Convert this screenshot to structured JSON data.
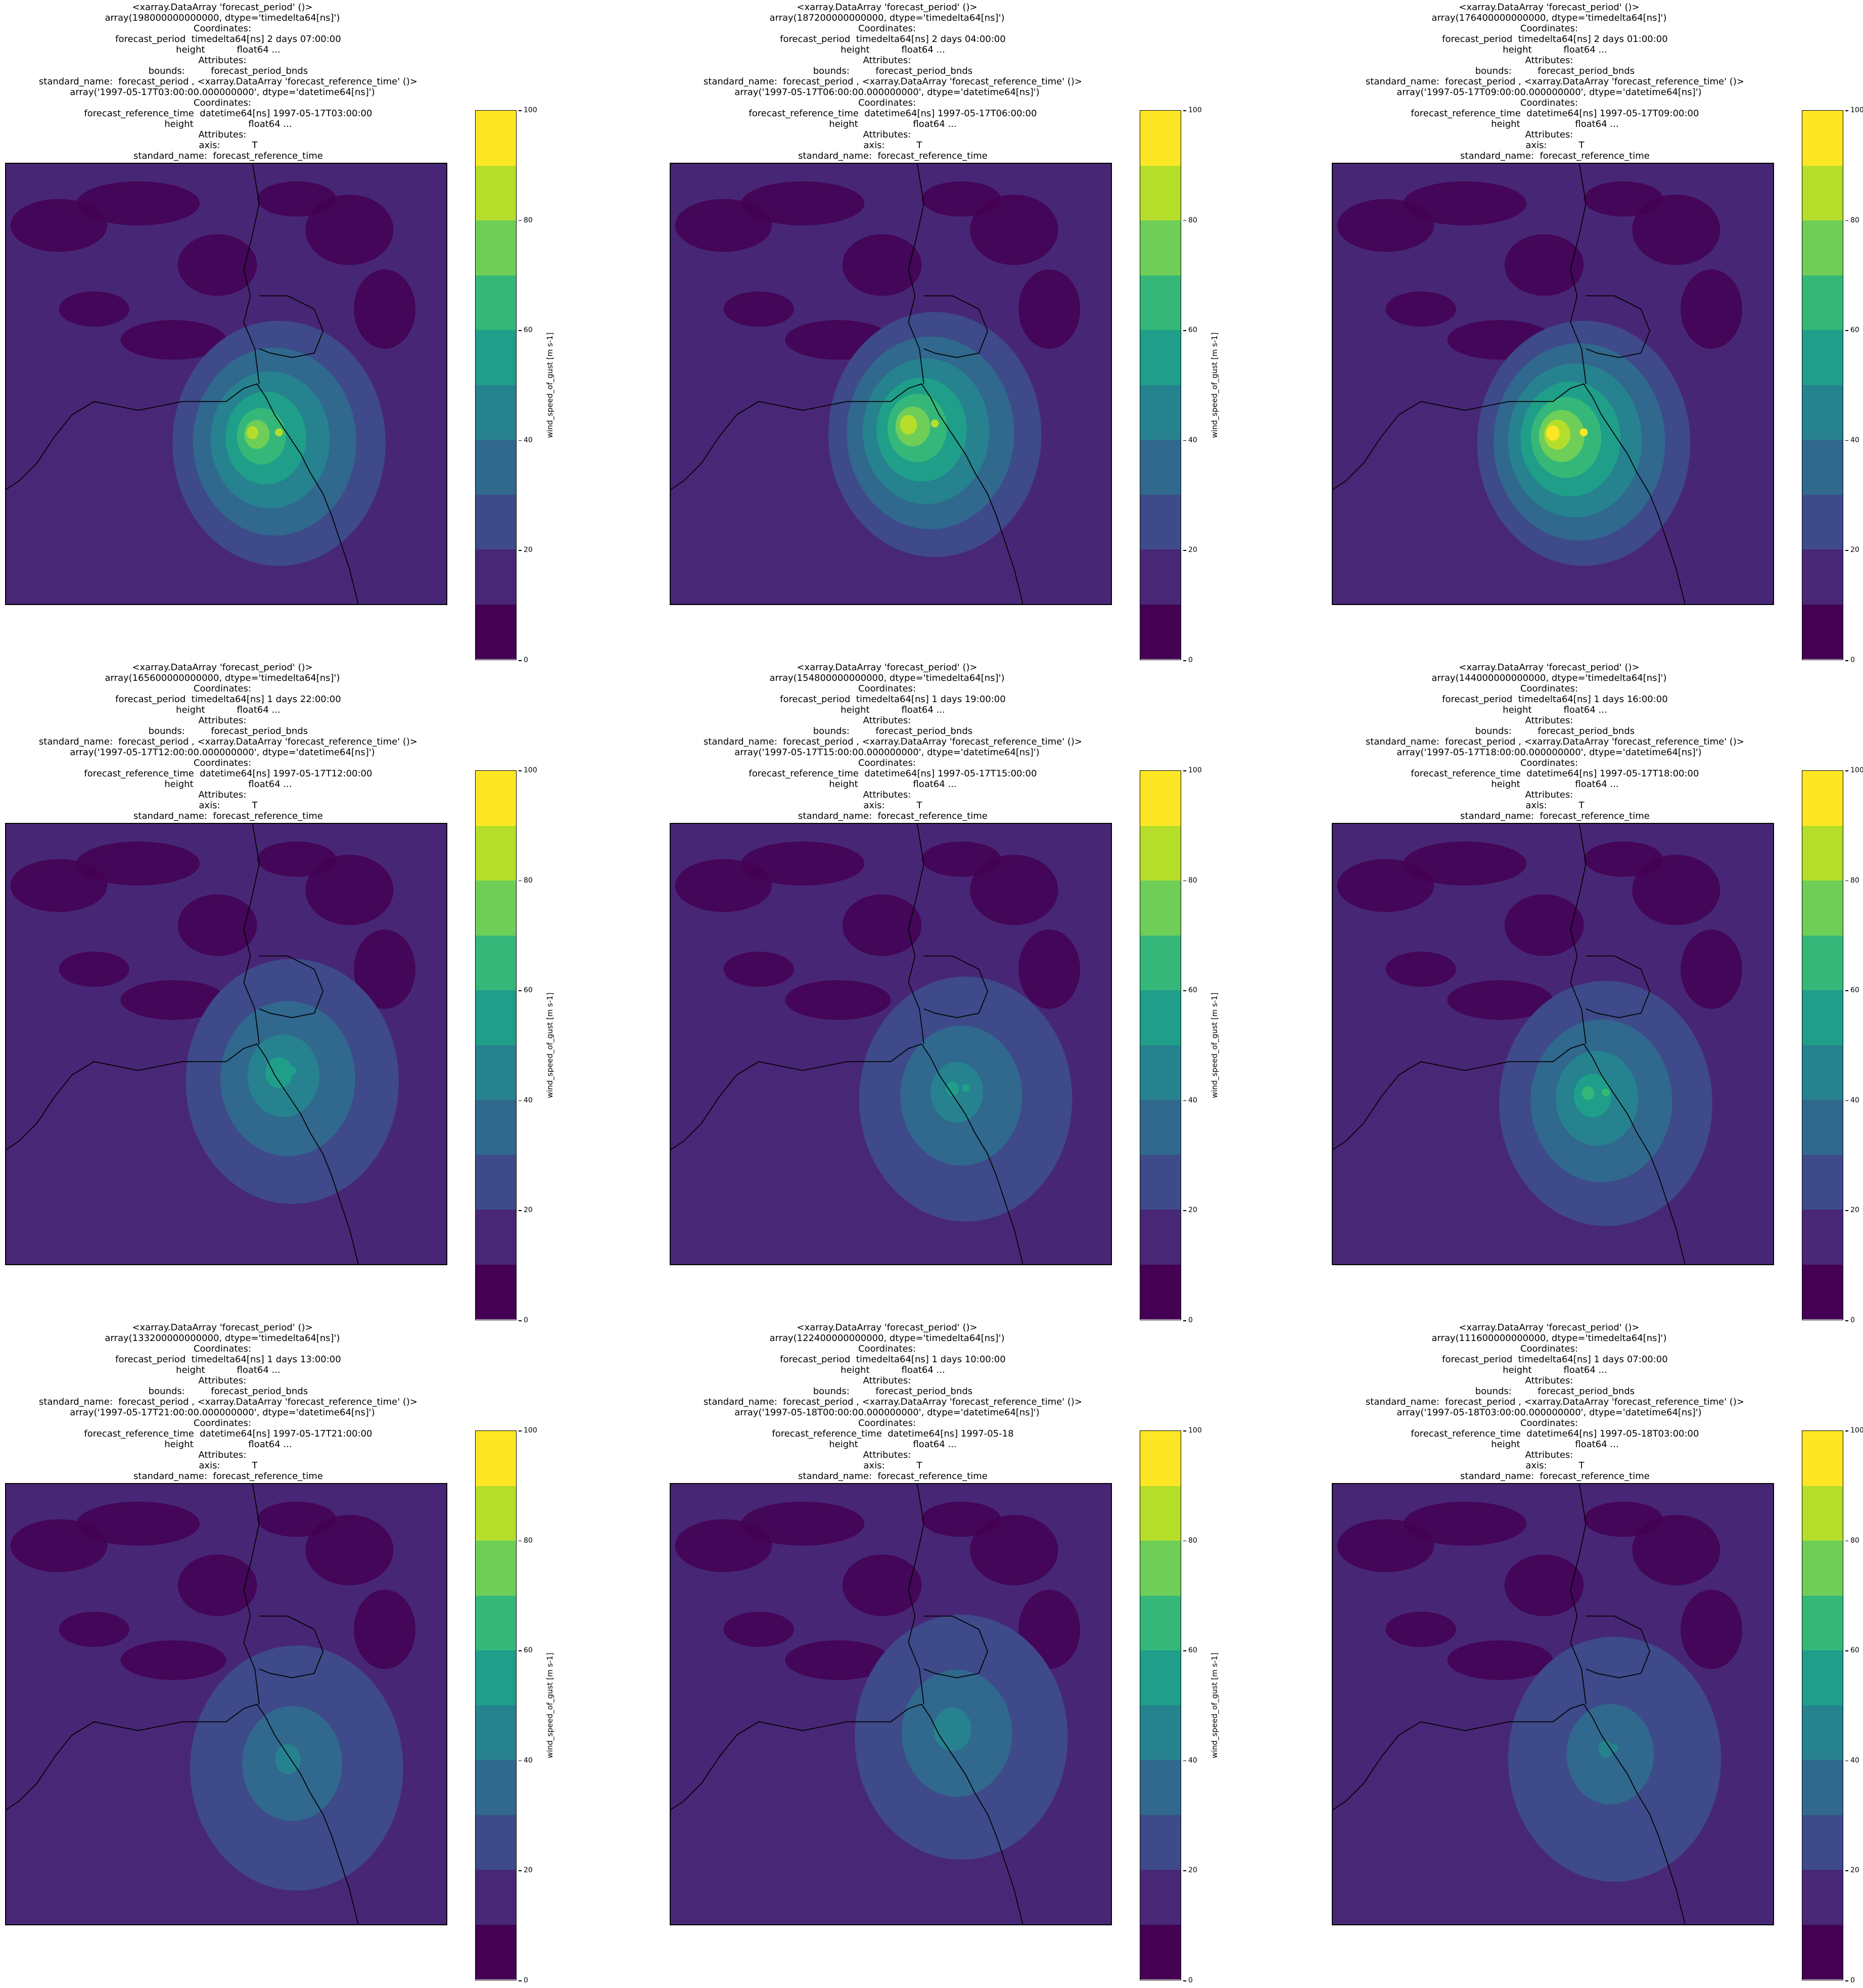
{
  "chart_data": {
    "type": "heatmap",
    "colorbar": {
      "label": "wind_speed_of_gust [m s-1]",
      "levels": [
        0,
        10,
        20,
        30,
        40,
        50,
        60,
        70,
        80,
        90,
        100
      ],
      "tick_labels": [
        "0",
        "20",
        "40",
        "60",
        "80",
        "100"
      ],
      "colors": [
        "#440154",
        "#482777",
        "#3e4a89",
        "#31688e",
        "#26828e",
        "#1f9e89",
        "#35b779",
        "#6ece58",
        "#b5de2b",
        "#fde725"
      ]
    },
    "panels": [
      {
        "title_lines": [
          "<xarray.DataArray 'forecast_period' ()>",
          "array(198000000000000, dtype='timedelta64[ns]')",
          "Coordinates:",
          "    forecast_period  timedelta64[ns] 2 days 07:00:00",
          "    height           float64 ...",
          "Attributes:",
          "    bounds:         forecast_period_bnds",
          "    standard_name:  forecast_period , <xarray.DataArray 'forecast_reference_time' ()>",
          "array('1997-05-17T03:00:00.000000000', dtype='datetime64[ns]')",
          "Coordinates:",
          "    forecast_reference_time  datetime64[ns] 1997-05-17T03:00:00",
          "    height                   float64 ...",
          "Attributes:",
          "    axis:           T",
          "    standard_name:  forecast_reference_time"
        ],
        "storm": {
          "x": 0.62,
          "y": 0.61,
          "peak": 82
        }
      },
      {
        "title_lines": [
          "<xarray.DataArray 'forecast_period' ()>",
          "array(187200000000000, dtype='timedelta64[ns]')",
          "Coordinates:",
          "    forecast_period  timedelta64[ns] 2 days 04:00:00",
          "    height           float64 ...",
          "Attributes:",
          "    bounds:         forecast_period_bnds",
          "    standard_name:  forecast_period , <xarray.DataArray 'forecast_reference_time' ()>",
          "array('1997-05-17T06:00:00.000000000', dtype='datetime64[ns]')",
          "Coordinates:",
          "    forecast_reference_time  datetime64[ns] 1997-05-17T06:00:00",
          "    height                   float64 ...",
          "Attributes:",
          "    axis:           T",
          "    standard_name:  forecast_reference_time"
        ],
        "storm": {
          "x": 0.6,
          "y": 0.59,
          "peak": 88
        }
      },
      {
        "title_lines": [
          "<xarray.DataArray 'forecast_period' ()>",
          "array(176400000000000, dtype='timedelta64[ns]')",
          "Coordinates:",
          "    forecast_period  timedelta64[ns] 2 days 01:00:00",
          "    height           float64 ...",
          "Attributes:",
          "    bounds:         forecast_period_bnds",
          "    standard_name:  forecast_period , <xarray.DataArray 'forecast_reference_time' ()>",
          "array('1997-05-17T09:00:00.000000000', dtype='datetime64[ns]')",
          "Coordinates:",
          "    forecast_reference_time  datetime64[ns] 1997-05-17T09:00:00",
          "    height                   float64 ...",
          "Attributes:",
          "    axis:           T",
          "    standard_name:  forecast_reference_time"
        ],
        "storm": {
          "x": 0.57,
          "y": 0.61,
          "peak": 95
        }
      },
      {
        "title_lines": [
          "<xarray.DataArray 'forecast_period' ()>",
          "array(165600000000000, dtype='timedelta64[ns]')",
          "Coordinates:",
          "    forecast_period  timedelta64[ns] 1 days 22:00:00",
          "    height           float64 ...",
          "Attributes:",
          "    bounds:         forecast_period_bnds",
          "    standard_name:  forecast_period , <xarray.DataArray 'forecast_reference_time' ()>",
          "array('1997-05-17T12:00:00.000000000', dtype='datetime64[ns]')",
          "Coordinates:",
          "    forecast_reference_time  datetime64[ns] 1997-05-17T12:00:00",
          "    height                   float64 ...",
          "Attributes:",
          "    axis:           T",
          "    standard_name:  forecast_reference_time"
        ],
        "storm": {
          "x": 0.65,
          "y": 0.56,
          "peak": 58
        }
      },
      {
        "title_lines": [
          "<xarray.DataArray 'forecast_period' ()>",
          "array(154800000000000, dtype='timedelta64[ns]')",
          "Coordinates:",
          "    forecast_period  timedelta64[ns] 1 days 19:00:00",
          "    height           float64 ...",
          "Attributes:",
          "    bounds:         forecast_period_bnds",
          "    standard_name:  forecast_period , <xarray.DataArray 'forecast_reference_time' ()>",
          "array('1997-05-17T15:00:00.000000000', dtype='datetime64[ns]')",
          "Coordinates:",
          "    forecast_reference_time  datetime64[ns] 1997-05-17T15:00:00",
          "    height                   float64 ...",
          "Attributes:",
          "    axis:           T",
          "    standard_name:  forecast_reference_time"
        ],
        "storm": {
          "x": 0.67,
          "y": 0.6,
          "peak": 52
        }
      },
      {
        "title_lines": [
          "<xarray.DataArray 'forecast_period' ()>",
          "array(144000000000000, dtype='timedelta64[ns]')",
          "Coordinates:",
          "    forecast_period  timedelta64[ns] 1 days 16:00:00",
          "    height           float64 ...",
          "Attributes:",
          "    bounds:         forecast_period_bnds",
          "    standard_name:  forecast_period , <xarray.DataArray 'forecast_reference_time' ()>",
          "array('1997-05-17T18:00:00.000000000', dtype='datetime64[ns]')",
          "Coordinates:",
          "    forecast_reference_time  datetime64[ns] 1997-05-17T18:00:00",
          "    height                   float64 ...",
          "Attributes:",
          "    axis:           T",
          "    standard_name:  forecast_reference_time"
        ],
        "storm": {
          "x": 0.62,
          "y": 0.61,
          "peak": 62
        }
      },
      {
        "title_lines": [
          "<xarray.DataArray 'forecast_period' ()>",
          "array(133200000000000, dtype='timedelta64[ns]')",
          "Coordinates:",
          "    forecast_period  timedelta64[ns] 1 days 13:00:00",
          "    height           float64 ...",
          "Attributes:",
          "    bounds:         forecast_period_bnds",
          "    standard_name:  forecast_period , <xarray.DataArray 'forecast_reference_time' ()>",
          "array('1997-05-17T21:00:00.000000000', dtype='datetime64[ns]')",
          "Coordinates:",
          "    forecast_reference_time  datetime64[ns] 1997-05-17T21:00:00",
          "    height                   float64 ...",
          "Attributes:",
          "    axis:           T",
          "    standard_name:  forecast_reference_time"
        ],
        "storm": {
          "x": 0.66,
          "y": 0.62,
          "peak": 45
        }
      },
      {
        "title_lines": [
          "<xarray.DataArray 'forecast_period' ()>",
          "array(122400000000000, dtype='timedelta64[ns]')",
          "Coordinates:",
          "    forecast_period  timedelta64[ns] 1 days 10:00:00",
          "    height           float64 ...",
          "Attributes:",
          "    bounds:         forecast_period_bnds",
          "    standard_name:  forecast_period , <xarray.DataArray 'forecast_reference_time' ()>",
          "array('1997-05-18T00:00:00.000000000', dtype='datetime64[ns]')",
          "Coordinates:",
          "    forecast_reference_time  datetime64[ns] 1997-05-18",
          "    height                   float64 ...",
          "Attributes:",
          "    axis:           T",
          "    standard_name:  forecast_reference_time"
        ],
        "storm": {
          "x": 0.66,
          "y": 0.55,
          "peak": 48
        }
      },
      {
        "title_lines": [
          "<xarray.DataArray 'forecast_period' ()>",
          "array(111600000000000, dtype='timedelta64[ns]')",
          "Coordinates:",
          "    forecast_period  timedelta64[ns] 1 days 07:00:00",
          "    height           float64 ...",
          "Attributes:",
          "    bounds:         forecast_period_bnds",
          "    standard_name:  forecast_period , <xarray.DataArray 'forecast_reference_time' ()>",
          "array('1997-05-18T03:00:00.000000000', dtype='datetime64[ns]')",
          "Coordinates:",
          "    forecast_reference_time  datetime64[ns] 1997-05-18T03:00:00",
          "    height                   float64 ...",
          "Attributes:",
          "    axis:           T",
          "    standard_name:  forecast_reference_time"
        ],
        "storm": {
          "x": 0.64,
          "y": 0.6,
          "peak": 42
        }
      }
    ]
  }
}
